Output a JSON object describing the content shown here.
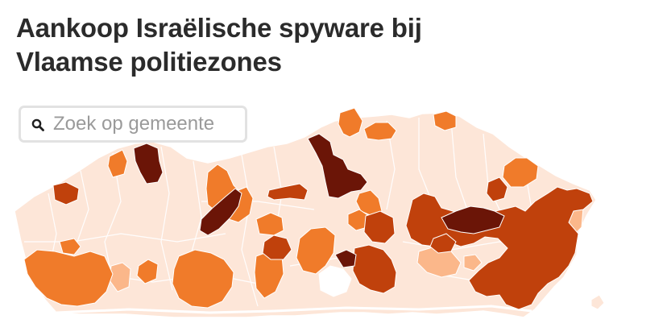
{
  "header": {
    "title_line1": "Aankoop Israëlische spyware bij",
    "title_line2": "Vlaamse politiezones"
  },
  "search": {
    "placeholder": "Zoek op gemeente",
    "icon": "search-icon"
  },
  "map": {
    "region": "Vlaanderen",
    "unit": "politiezones",
    "palette": {
      "none": "#fde6d8",
      "light": "#fbb78a",
      "medium": "#f07b2a",
      "high": "#c0410c",
      "very_high": "#6b1507",
      "border": "#ffffff",
      "brussels": "#ffffff"
    }
  }
}
